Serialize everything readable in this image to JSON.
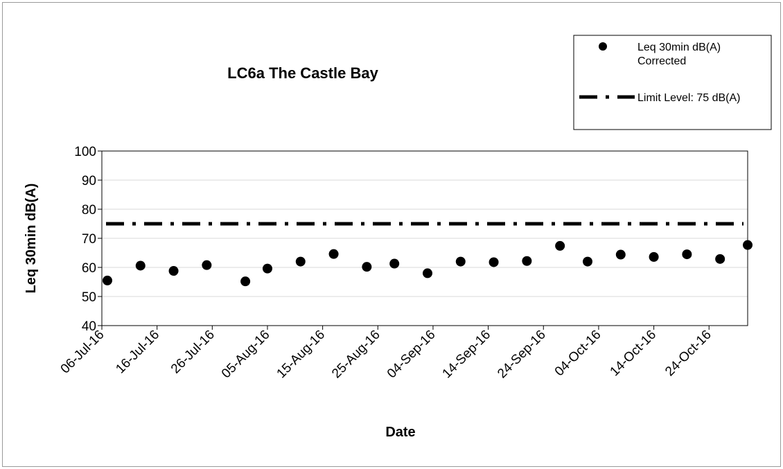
{
  "chart_data": {
    "type": "scatter",
    "title": "LC6a The Castle Bay",
    "xlabel": "Date",
    "ylabel": "Leq 30min dB(A)",
    "ylim": [
      40,
      100
    ],
    "yticks": [
      40,
      50,
      60,
      70,
      80,
      90,
      100
    ],
    "xlim": [
      "2016-07-06",
      "2016-10-31"
    ],
    "xticks": [
      "06-Jul-16",
      "16-Jul-16",
      "26-Jul-16",
      "05-Aug-16",
      "15-Aug-16",
      "25-Aug-16",
      "04-Sep-16",
      "14-Sep-16",
      "24-Sep-16",
      "04-Oct-16",
      "14-Oct-16",
      "24-Oct-16"
    ],
    "grid": true,
    "legend_position": "top-right",
    "series": [
      {
        "name": "Leq 30min dB(A) Corrected",
        "marker": "circle",
        "color": "#000000",
        "points": [
          {
            "x": "2016-07-07",
            "y": 55.5
          },
          {
            "x": "2016-07-13",
            "y": 60.6
          },
          {
            "x": "2016-07-19",
            "y": 58.8
          },
          {
            "x": "2016-07-25",
            "y": 60.8
          },
          {
            "x": "2016-08-01",
            "y": 55.2
          },
          {
            "x": "2016-08-05",
            "y": 59.6
          },
          {
            "x": "2016-08-11",
            "y": 62.0
          },
          {
            "x": "2016-08-17",
            "y": 64.6
          },
          {
            "x": "2016-08-23",
            "y": 60.2
          },
          {
            "x": "2016-08-28",
            "y": 61.3
          },
          {
            "x": "2016-09-03",
            "y": 58.0
          },
          {
            "x": "2016-09-09",
            "y": 62.0
          },
          {
            "x": "2016-09-15",
            "y": 61.8
          },
          {
            "x": "2016-09-21",
            "y": 62.2
          },
          {
            "x": "2016-09-27",
            "y": 67.4
          },
          {
            "x": "2016-10-02",
            "y": 62.0
          },
          {
            "x": "2016-10-08",
            "y": 64.4
          },
          {
            "x": "2016-10-14",
            "y": 63.6
          },
          {
            "x": "2016-10-20",
            "y": 64.5
          },
          {
            "x": "2016-10-26",
            "y": 62.9
          },
          {
            "x": "2016-10-31",
            "y": 67.7
          }
        ]
      },
      {
        "name": "Limit Level: 75 dB(A)",
        "type": "line",
        "style": "dash-dot",
        "color": "#000000",
        "y": 75
      }
    ]
  }
}
